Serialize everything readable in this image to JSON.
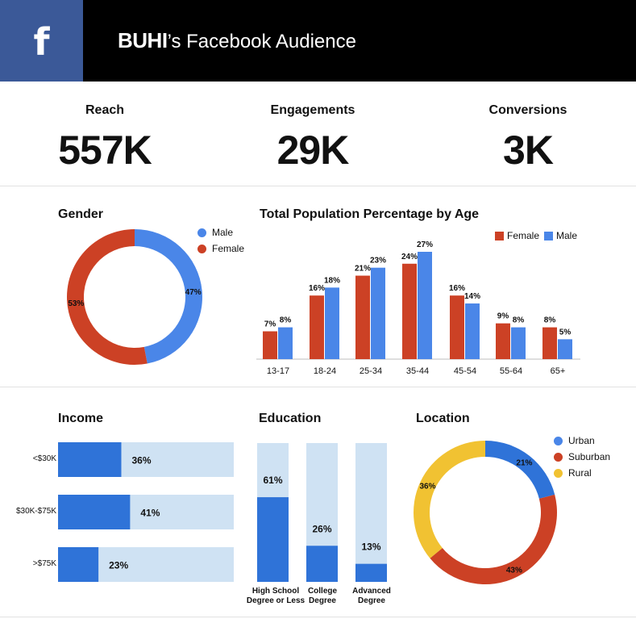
{
  "header": {
    "brand": "BUHI",
    "title_rest": "’s Facebook Audience",
    "icon": "facebook-icon",
    "icon_glyph": "f",
    "colors": {
      "background": "#000000",
      "facebook_blue": "#3b5998"
    }
  },
  "kpis": [
    {
      "label": "Reach",
      "value": "557K"
    },
    {
      "label": "Engagements",
      "value": "29K"
    },
    {
      "label": "Conversions",
      "value": "3K"
    }
  ],
  "colors": {
    "blue": "#4a86e8",
    "red": "#cc4125",
    "yellow": "#f1c232",
    "bar_blue": "#2f73d8",
    "bar_track": "#cfe2f3",
    "axis": "#bdbdbd"
  },
  "gender": {
    "title": "Gender",
    "legend": [
      "Male",
      "Female"
    ]
  },
  "age": {
    "title": "Total Population Percentage by Age",
    "legend": [
      "Female",
      "Male"
    ]
  },
  "income": {
    "title": "Income"
  },
  "education": {
    "title": "Education"
  },
  "location": {
    "title": "Location",
    "legend": [
      "Urban",
      "Suburban",
      "Rural"
    ]
  },
  "chart_data": [
    {
      "type": "pie",
      "donut": true,
      "title": "Gender",
      "legend_position": "right",
      "slices": [
        {
          "label": "Male",
          "value": 47,
          "display": "47%",
          "color": "#4a86e8"
        },
        {
          "label": "Female",
          "value": 53,
          "display": "53%",
          "color": "#cc4125"
        }
      ]
    },
    {
      "type": "bar",
      "title": "Total Population Percentage by Age",
      "legend_position": "top-right",
      "categories": [
        "13-17",
        "18-24",
        "25-34",
        "35-44",
        "45-54",
        "55-64",
        "65+"
      ],
      "series": [
        {
          "name": "Female",
          "color": "#cc4125",
          "values": [
            7,
            16,
            21,
            24,
            16,
            9,
            8
          ],
          "labels": [
            "7%",
            "16%",
            "21%",
            "24%",
            "16%",
            "9%",
            "8%"
          ]
        },
        {
          "name": "Male",
          "color": "#4a86e8",
          "values": [
            8,
            18,
            23,
            27,
            14,
            8,
            5
          ],
          "labels": [
            "8%",
            "18%",
            "23%",
            "27%",
            "14%",
            "8%",
            "5%"
          ]
        }
      ],
      "ylim": [
        0,
        27
      ]
    },
    {
      "type": "bar",
      "orientation": "horizontal",
      "title": "Income",
      "categories": [
        "<$30K",
        "$30K-$75K",
        ">$75K"
      ],
      "values": [
        36,
        41,
        23
      ],
      "labels": [
        "36%",
        "41%",
        "23%"
      ],
      "xlim": [
        0,
        100
      ]
    },
    {
      "type": "bar",
      "orientation": "vertical",
      "title": "Education",
      "categories": [
        "High School Degree or Less",
        "College Degree",
        "Advanced Degree"
      ],
      "category_lines": [
        [
          "High School",
          "Degree or Less"
        ],
        [
          "College",
          "Degree"
        ],
        [
          "Advanced",
          "Degree"
        ]
      ],
      "values": [
        61,
        26,
        13
      ],
      "labels": [
        "61%",
        "26%",
        "13%"
      ],
      "ylim": [
        0,
        100
      ]
    },
    {
      "type": "pie",
      "donut": true,
      "title": "Location",
      "legend_position": "top-right",
      "slices": [
        {
          "label": "Urban",
          "value": 21,
          "display": "21%",
          "color": "#2f73d8"
        },
        {
          "label": "Suburban",
          "value": 43,
          "display": "43%",
          "color": "#cc4125"
        },
        {
          "label": "Rural",
          "value": 36,
          "display": "36%",
          "color": "#f1c232"
        }
      ]
    }
  ]
}
